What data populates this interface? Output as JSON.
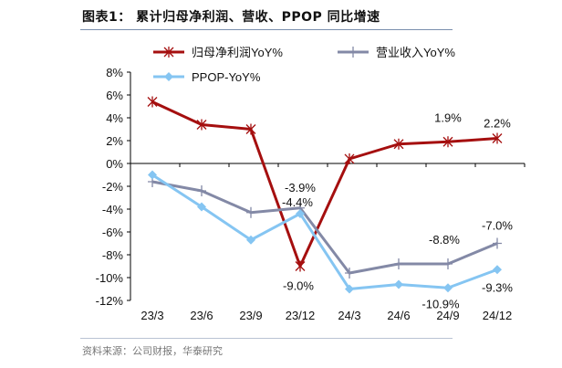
{
  "title": "图表1：  累计归母净利润、营收、PPOP 同比增速",
  "source": "资料来源：公司财报，华泰研究",
  "chart_data": {
    "type": "line",
    "title": "",
    "xlabel": "",
    "ylabel": "",
    "categories": [
      "23/3",
      "23/6",
      "23/9",
      "23/12",
      "24/3",
      "24/6",
      "24/9",
      "24/12"
    ],
    "ylim": [
      -12,
      8
    ],
    "yticks": [
      8,
      6,
      4,
      2,
      0,
      -2,
      -4,
      -6,
      -8,
      -10,
      -12
    ],
    "ytick_labels": [
      "8%",
      "6%",
      "4%",
      "2%",
      "0%",
      "-2%",
      "-4%",
      "-6%",
      "-8%",
      "-10%",
      "-12%"
    ],
    "grid": false,
    "legend_position": "top",
    "series": [
      {
        "name": "归母净利润YoY%",
        "color": "#a50f0f",
        "marker": "asterisk",
        "values": [
          5.4,
          3.4,
          3.0,
          -9.0,
          0.4,
          1.7,
          1.9,
          2.2
        ],
        "labels": [
          null,
          null,
          null,
          "-9.0%",
          null,
          null,
          "1.9%",
          "2.2%"
        ]
      },
      {
        "name": "营业收入YoY%",
        "color": "#8389a6",
        "marker": "plus",
        "values": [
          -1.6,
          -2.4,
          -4.3,
          -3.9,
          -9.6,
          -8.8,
          -8.8,
          -7.0
        ],
        "labels": [
          null,
          null,
          null,
          "-3.9%",
          null,
          null,
          "-8.8%",
          "-7.0%"
        ]
      },
      {
        "name": "PPOP-YoY%",
        "color": "#85c5f2",
        "marker": "diamond",
        "values": [
          -1.0,
          -3.8,
          -6.7,
          -4.4,
          -11.0,
          -10.6,
          -10.9,
          -9.3
        ],
        "labels": [
          null,
          null,
          null,
          "-4.4%",
          null,
          null,
          "-10.9%",
          "-9.3%"
        ]
      }
    ]
  }
}
